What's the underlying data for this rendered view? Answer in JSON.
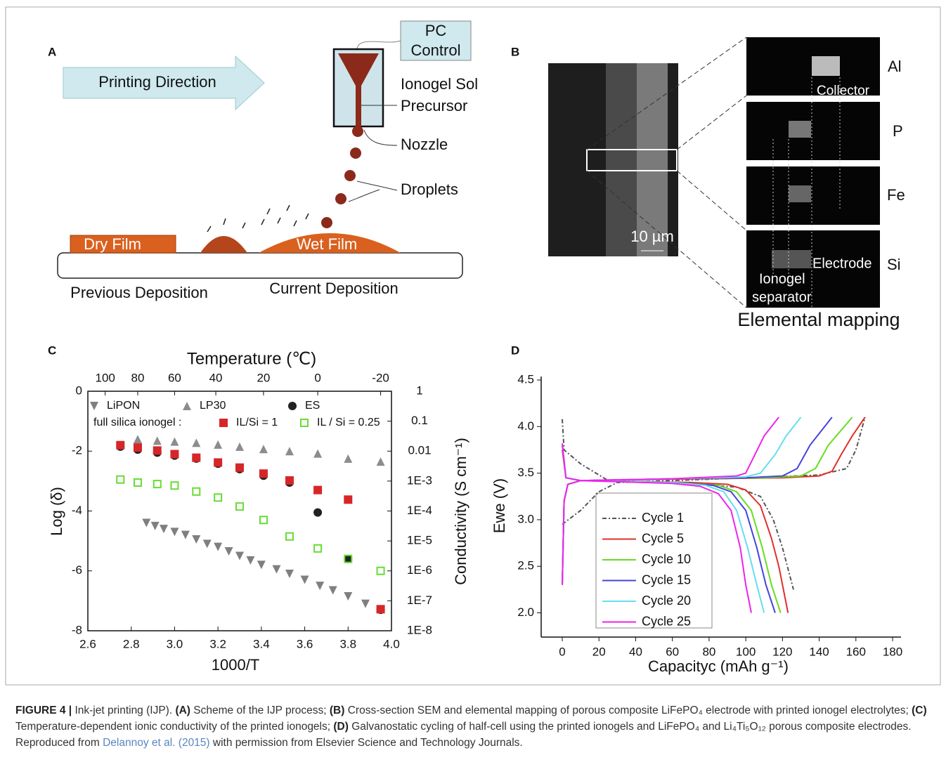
{
  "panel_a": {
    "label": "A",
    "arrow": "Printing Direction",
    "pc_control": [
      "PC",
      "Control"
    ],
    "sol_precursor": [
      "Ionogel Sol",
      "Precursor"
    ],
    "nozzle": "Nozzle",
    "droplets": "Droplets",
    "dry_film": "Dry Film",
    "wet_film": "Wet Film",
    "previous": "Previous Deposition",
    "current": "Current Deposition"
  },
  "panel_b": {
    "label": "B",
    "elements": [
      "Al",
      "P",
      "Fe",
      "Si"
    ],
    "collector": "Collector",
    "electrode": "Electrode",
    "ionogel": [
      "Ionogel",
      "separator"
    ],
    "scale_bar": "10 µm",
    "title": "Elemental mapping"
  },
  "chart_data": [
    {
      "type": "scatter",
      "label": "C",
      "xlabel": "1000/T",
      "ylabel": "Log (δ)",
      "x2label": "Temperature (℃)",
      "y2label": "Conductivity (S cm⁻¹)",
      "annotation": "full silica ionogel :",
      "xlim": [
        2.6,
        4.0
      ],
      "xticks": [
        2.6,
        2.8,
        {
          "value": 3,
          "label": "3.0"
        },
        3.2,
        3.4,
        3.6,
        3.8,
        {
          "value": 4,
          "label": "4.0"
        }
      ],
      "ylim": [
        -8,
        0
      ],
      "yticks": [
        -8,
        -6,
        -4,
        -2,
        0
      ],
      "x2ticks": [
        {
          "value": 2.68,
          "label": "100"
        },
        {
          "value": 2.83,
          "label": "80"
        },
        {
          "value": 3.0,
          "label": "60"
        },
        {
          "value": 3.19,
          "label": "40"
        },
        {
          "value": 3.41,
          "label": "20"
        },
        {
          "value": 3.66,
          "label": "0"
        },
        {
          "value": 3.95,
          "label": "-20"
        }
      ],
      "y2lim": [
        1e-08,
        1
      ],
      "y2log": true,
      "y2ticks": [
        1,
        0.1,
        0.01,
        {
          "value": 0.001,
          "label": "1E-3"
        },
        {
          "value": 0.0001,
          "label": "1E-4"
        },
        {
          "value": 1e-05,
          "label": "1E-5"
        },
        {
          "value": 1e-06,
          "label": "1E-6"
        },
        {
          "value": 1e-07,
          "label": "1E-7"
        },
        {
          "value": 1e-08,
          "label": "1E-8"
        }
      ],
      "series": [
        {
          "name": "LiPON",
          "color": "#7f7f7f",
          "marker": "triangle-down",
          "x": [
            2.87,
            2.91,
            2.95,
            3.0,
            3.05,
            3.1,
            3.15,
            3.2,
            3.25,
            3.3,
            3.35,
            3.4,
            3.47,
            3.53,
            3.6,
            3.67,
            3.73,
            3.8,
            3.88,
            3.95
          ],
          "values": [
            -4.4,
            -4.5,
            -4.6,
            -4.7,
            -4.8,
            -4.95,
            -5.1,
            -5.2,
            -5.35,
            -5.5,
            -5.65,
            -5.8,
            -5.95,
            -6.1,
            -6.3,
            -6.5,
            -6.65,
            -6.85,
            -7.1,
            -7.3
          ]
        },
        {
          "name": "LP30",
          "color": "#8c8c8c",
          "marker": "triangle-up",
          "x": [
            2.83,
            2.92,
            3.0,
            3.1,
            3.2,
            3.3,
            3.41,
            3.53,
            3.66,
            3.8,
            3.95
          ],
          "values": [
            -1.6,
            -1.65,
            -1.68,
            -1.72,
            -1.78,
            -1.85,
            -1.93,
            -2.0,
            -2.08,
            -2.25,
            -2.35
          ]
        },
        {
          "name": "ES",
          "color": "#222222",
          "marker": "circle",
          "x": [
            2.75,
            2.83,
            2.92,
            3.0,
            3.1,
            3.2,
            3.3,
            3.41,
            3.53,
            3.66,
            3.8,
            3.95
          ],
          "values": [
            -1.85,
            -1.95,
            -2.05,
            -2.15,
            -2.25,
            -2.42,
            -2.6,
            -2.82,
            -3.05,
            -4.05,
            -5.6,
            -7.3
          ]
        },
        {
          "name": "IL/Si = 1",
          "color": "#d62728",
          "marker": "square",
          "x": [
            2.75,
            2.83,
            2.92,
            3.0,
            3.1,
            3.2,
            3.3,
            3.41,
            3.53,
            3.66,
            3.8,
            3.95
          ],
          "values": [
            -1.8,
            -1.88,
            -1.98,
            -2.1,
            -2.22,
            -2.38,
            -2.55,
            -2.75,
            -2.98,
            -3.3,
            -3.62,
            -7.28
          ]
        },
        {
          "name": "IL / Si = 0.25",
          "color": "#66dd33",
          "marker": "square-open",
          "x": [
            2.75,
            2.83,
            2.92,
            3.0,
            3.1,
            3.2,
            3.3,
            3.41,
            3.53,
            3.66,
            3.8,
            3.95
          ],
          "values": [
            -2.95,
            -3.05,
            -3.1,
            -3.15,
            -3.35,
            -3.55,
            -3.85,
            -4.3,
            -4.85,
            -5.25,
            -5.6,
            -6.0
          ]
        }
      ]
    },
    {
      "type": "line",
      "label": "D",
      "xlabel": "Capacityc (mAh g⁻¹)",
      "ylabel": "Ewe (V)",
      "xlim": [
        -11.5,
        180
      ],
      "xticks": [
        0,
        20,
        40,
        60,
        80,
        100,
        120,
        140,
        160,
        180
      ],
      "ylim": [
        1.74,
        4.5
      ],
      "yticks": [
        {
          "value": 2,
          "label": "2.0"
        },
        2.5,
        {
          "value": 3,
          "label": "3.0"
        },
        3.5,
        {
          "value": 4,
          "label": "4.0"
        },
        4.5
      ],
      "series": [
        {
          "name": "Cycle 1",
          "color": "#555555",
          "line_style": "dashdot",
          "x": [
            0,
            10,
            20,
            30,
            60,
            100,
            140,
            155,
            160,
            165,
            null,
            0,
            1,
            10,
            25,
            60,
            95,
            108,
            115,
            120,
            126
          ],
          "values": [
            2.95,
            3.1,
            3.3,
            3.4,
            3.42,
            3.45,
            3.48,
            3.55,
            3.75,
            4.1,
            null,
            4.08,
            3.75,
            3.6,
            3.42,
            3.4,
            3.35,
            3.25,
            3.0,
            2.7,
            2.25
          ]
        },
        {
          "name": "Cycle 5",
          "color": "#e0302a",
          "x": [
            0,
            1,
            3,
            10,
            40,
            80,
            120,
            140,
            147,
            152,
            158,
            165,
            null,
            0,
            2,
            10,
            40,
            70,
            90,
            100,
            108,
            114,
            118,
            121,
            123
          ],
          "values": [
            2.3,
            3.2,
            3.38,
            3.42,
            3.43,
            3.44,
            3.45,
            3.47,
            3.52,
            3.7,
            3.9,
            4.1,
            null,
            3.75,
            3.45,
            3.42,
            3.41,
            3.4,
            3.38,
            3.32,
            3.15,
            2.8,
            2.5,
            2.2,
            2.0
          ]
        },
        {
          "name": "Cycle 10",
          "color": "#66dd22",
          "x": [
            0,
            1,
            3,
            10,
            60,
            110,
            130,
            138,
            145,
            158,
            null,
            0,
            2,
            10,
            60,
            85,
            95,
            103,
            109,
            114,
            119
          ],
          "values": [
            2.3,
            3.2,
            3.38,
            3.42,
            3.44,
            3.45,
            3.47,
            3.55,
            3.8,
            4.1,
            null,
            3.8,
            3.45,
            3.42,
            3.4,
            3.37,
            3.3,
            3.1,
            2.7,
            2.3,
            2.0
          ]
        },
        {
          "name": "Cycle 15",
          "color": "#4444dd",
          "x": [
            0,
            1,
            3,
            10,
            60,
            100,
            120,
            128,
            135,
            147,
            null,
            0,
            2,
            10,
            60,
            82,
            92,
            100,
            106,
            111,
            116
          ],
          "values": [
            2.3,
            3.2,
            3.38,
            3.42,
            3.44,
            3.45,
            3.47,
            3.55,
            3.8,
            4.1,
            null,
            3.8,
            3.45,
            3.42,
            3.4,
            3.37,
            3.3,
            3.1,
            2.7,
            2.3,
            2.0
          ]
        },
        {
          "name": "Cycle 20",
          "color": "#66ddee",
          "x": [
            0,
            1,
            3,
            10,
            60,
            100,
            108,
            116,
            122,
            130,
            null,
            0,
            2,
            10,
            60,
            78,
            88,
            95,
            101,
            106,
            110
          ],
          "values": [
            2.3,
            3.2,
            3.38,
            3.42,
            3.44,
            3.46,
            3.5,
            3.7,
            3.9,
            4.1,
            null,
            3.8,
            3.45,
            3.42,
            3.4,
            3.37,
            3.3,
            3.1,
            2.7,
            2.3,
            2.0
          ]
        },
        {
          "name": "Cycle 25",
          "color": "#ee22ee",
          "x": [
            0,
            1,
            3,
            10,
            60,
            95,
            100,
            105,
            110,
            118,
            null,
            0,
            2,
            10,
            60,
            75,
            85,
            92,
            97,
            100,
            103
          ],
          "values": [
            2.3,
            3.2,
            3.38,
            3.42,
            3.44,
            3.47,
            3.5,
            3.7,
            3.9,
            4.1,
            null,
            3.82,
            3.45,
            3.42,
            3.39,
            3.36,
            3.28,
            3.1,
            2.7,
            2.3,
            2.0
          ]
        }
      ]
    }
  ],
  "caption": {
    "label": "FIGURE 4 |",
    "intro": "Ink-jet printing (IJP).",
    "items": [
      {
        "tag": "(A)",
        "text": "Scheme of the IJP process;"
      },
      {
        "tag": "(B)",
        "text": "Cross-section SEM and elemental mapping of porous composite LiFePO₄ electrode with printed ionogel electrolytes;"
      },
      {
        "tag": "(C)",
        "text": "Temperature-dependent ionic conductivity of the printed ionogels;"
      },
      {
        "tag": "(D)",
        "text": "Galvanostatic cycling of half-cell using the printed ionogels and LiFePO₄ and Li₄Ti₅O₁₂ porous composite electrodes."
      }
    ],
    "reproduced": "Reproduced from",
    "reference": "Delannoy et al. (2015)",
    "permission": "with permission from Elsevier Science and Technology Journals."
  }
}
